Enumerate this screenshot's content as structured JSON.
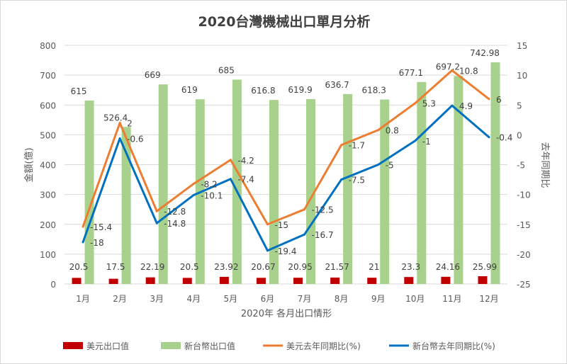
{
  "chart_data": {
    "type": "bar+line",
    "title": "2020台灣機械出口單月分析",
    "xlabel": "2020年 各月出口情形",
    "ylabel": "金額(億)",
    "y2label": "去年同期比",
    "categories": [
      "1月",
      "2月",
      "3月",
      "4月",
      "5月",
      "6月",
      "7月",
      "8月",
      "9月",
      "10月",
      "11月",
      "12月"
    ],
    "ylim": [
      0,
      800
    ],
    "yticks": [
      0,
      100,
      200,
      300,
      400,
      500,
      600,
      700,
      800
    ],
    "y2lim": [
      -25,
      15
    ],
    "y2ticks": [
      -25,
      -20,
      -15,
      -10,
      -5,
      0,
      5,
      10,
      15
    ],
    "bar_series": [
      {
        "name": "美元出口值",
        "color": "#c00000",
        "values": [
          20.5,
          17.5,
          22.19,
          20.5,
          23.92,
          20.67,
          20.95,
          21.57,
          21,
          23.3,
          24.16,
          25.99
        ],
        "labels": [
          "20.5",
          "17.5",
          "22.19",
          "20.5",
          "23.92",
          "20.67",
          "20.95",
          "21.57",
          "21",
          "23.3",
          "24.16",
          "25.99"
        ]
      },
      {
        "name": "新台幣出口值",
        "color": "#a9d18e",
        "values": [
          615,
          526.4,
          669,
          619,
          685,
          616.8,
          619.9,
          636.7,
          618.3,
          677.1,
          697.2,
          742.98
        ],
        "labels": [
          "615",
          "526.4",
          "669",
          "619",
          "685",
          "616.8",
          "619.9",
          "636.7",
          "618.3",
          "677.1",
          "697.2",
          "742.98"
        ]
      }
    ],
    "line_series": [
      {
        "name": "美元去年同期比(%)",
        "color": "#ed7d31",
        "values": [
          -15.4,
          2,
          -12.8,
          -8.2,
          -4.2,
          -15,
          -12.5,
          -1.7,
          0.8,
          5.3,
          10.8,
          6
        ],
        "labels": [
          "-15.4",
          "2",
          "-12.8",
          "-8.2",
          "-4.2",
          "-15",
          "-12.5",
          "-1.7",
          "0.8",
          "5.3",
          "10.8",
          "6"
        ]
      },
      {
        "name": "新台幣去年同期比(%)",
        "color": "#0070c0",
        "values": [
          -18,
          -0.6,
          -14.8,
          -10.1,
          -7.4,
          -19.4,
          -16.7,
          -7.5,
          -5,
          -1,
          4.9,
          -0.4
        ],
        "labels": [
          "-18",
          "-0.6",
          "-14.8",
          "-10.1",
          "-7.4",
          "-19.4",
          "-16.7",
          "-7.5",
          "-5",
          "-1",
          "4.9",
          "-0.4"
        ]
      }
    ],
    "grid": true,
    "legend_position": "bottom"
  }
}
